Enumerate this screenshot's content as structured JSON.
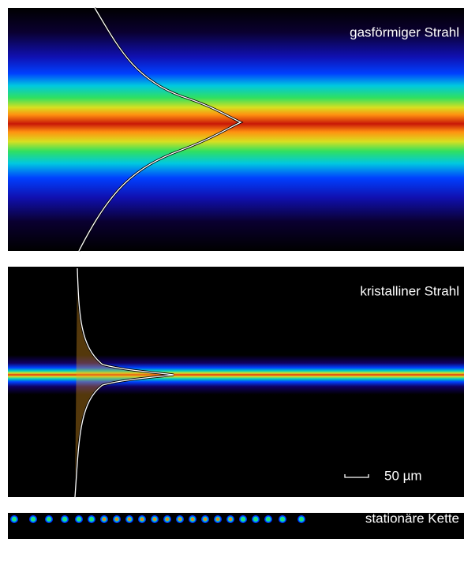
{
  "panels": [
    {
      "label": "gasförmiger Strahl"
    },
    {
      "label": "kristalliner Strahl"
    },
    {
      "label": "stationäre Kette"
    }
  ],
  "scale_bar": {
    "label": "50 µm"
  }
}
